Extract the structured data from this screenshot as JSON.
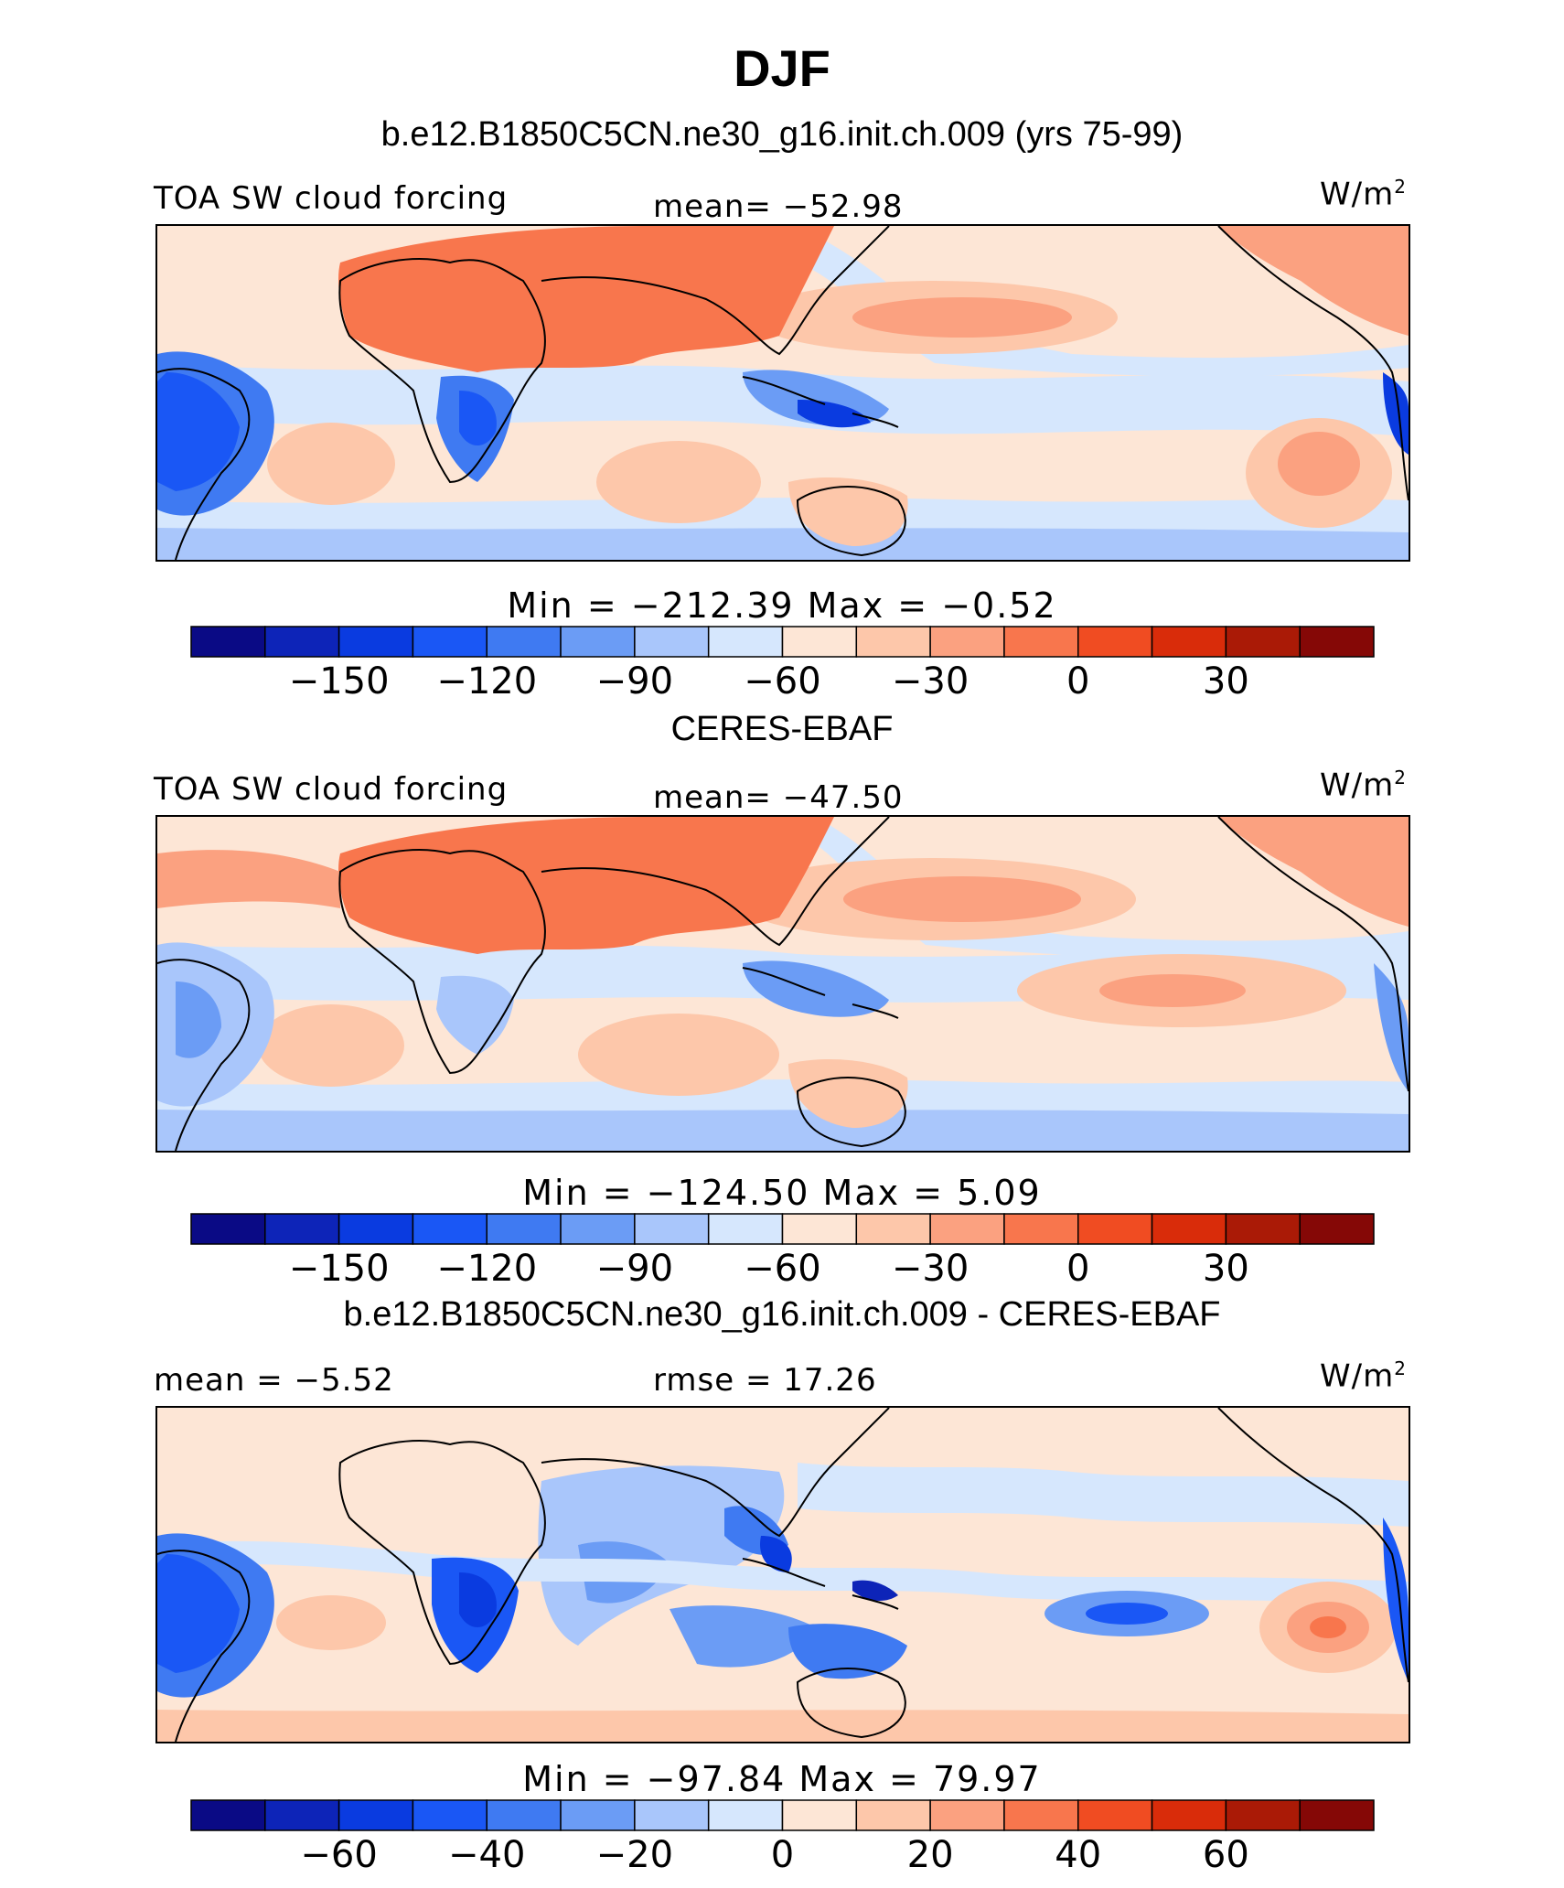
{
  "title": "DJF",
  "colorbar_colors": [
    "#0a0a85",
    "#0d24b8",
    "#0a3be0",
    "#1a57f5",
    "#3f7af2",
    "#6b9cf5",
    "#a9c6fb",
    "#d6e7fd",
    "#fde6d6",
    "#fdc7aa",
    "#fba180",
    "#f8764d",
    "#f04c22",
    "#d92c0a",
    "#aa1a06",
    "#850806"
  ],
  "land": "coastlines-icon",
  "panels": [
    {
      "title": "b.e12.B1850C5CN.ne30_g16.init.ch.009 (yrs 75-99)",
      "left_label": "TOA SW cloud forcing",
      "center_label": "mean= −52.98",
      "units": "W/m",
      "units_sup": "2",
      "minmax": "Min = −212.39 Max =  −0.52",
      "ticks": [
        "−150",
        "−120",
        "−90",
        "−60",
        "−30",
        "0",
        "30"
      ]
    },
    {
      "title": "CERES-EBAF",
      "left_label": "TOA SW cloud forcing",
      "center_label": "mean= −47.50",
      "units": "W/m",
      "units_sup": "2",
      "minmax": "Min = −124.50 Max =   5.09",
      "ticks": [
        "−150",
        "−120",
        "−90",
        "−60",
        "−30",
        "0",
        "30"
      ]
    },
    {
      "title": "b.e12.B1850C5CN.ne30_g16.init.ch.009 - CERES-EBAF",
      "left_label": "mean =  −5.52",
      "center_label": "rmse =  17.26",
      "units": "W/m",
      "units_sup": "2",
      "minmax": "Min = −97.84 Max =  79.97",
      "ticks": [
        "−60",
        "−40",
        "−20",
        "0",
        "20",
        "40",
        "60"
      ]
    }
  ],
  "chart_data": [
    {
      "type": "heatmap",
      "title": "b.e12.B1850C5CN.ne30_g16.init.ch.009 (yrs 75-99)",
      "variable": "TOA SW cloud forcing",
      "units": "W/m2",
      "mean": -52.98,
      "min": -212.39,
      "max": -0.52,
      "levels": [
        -165,
        -150,
        -135,
        -120,
        -105,
        -90,
        -75,
        -60,
        -45,
        -30,
        -15,
        0,
        15,
        30,
        45
      ]
    },
    {
      "type": "heatmap",
      "title": "CERES-EBAF",
      "variable": "TOA SW cloud forcing",
      "units": "W/m2",
      "mean": -47.5,
      "min": -124.5,
      "max": 5.09,
      "levels": [
        -165,
        -150,
        -135,
        -120,
        -105,
        -90,
        -75,
        -60,
        -45,
        -30,
        -15,
        0,
        15,
        30,
        45
      ]
    },
    {
      "type": "heatmap",
      "title": "b.e12.B1850C5CN.ne30_g16.init.ch.009 - CERES-EBAF",
      "units": "W/m2",
      "mean": -5.52,
      "rmse": 17.26,
      "min": -97.84,
      "max": 79.97,
      "levels": [
        -70,
        -60,
        -50,
        -40,
        -30,
        -20,
        -10,
        0,
        10,
        20,
        30,
        40,
        50,
        60,
        70
      ]
    }
  ]
}
